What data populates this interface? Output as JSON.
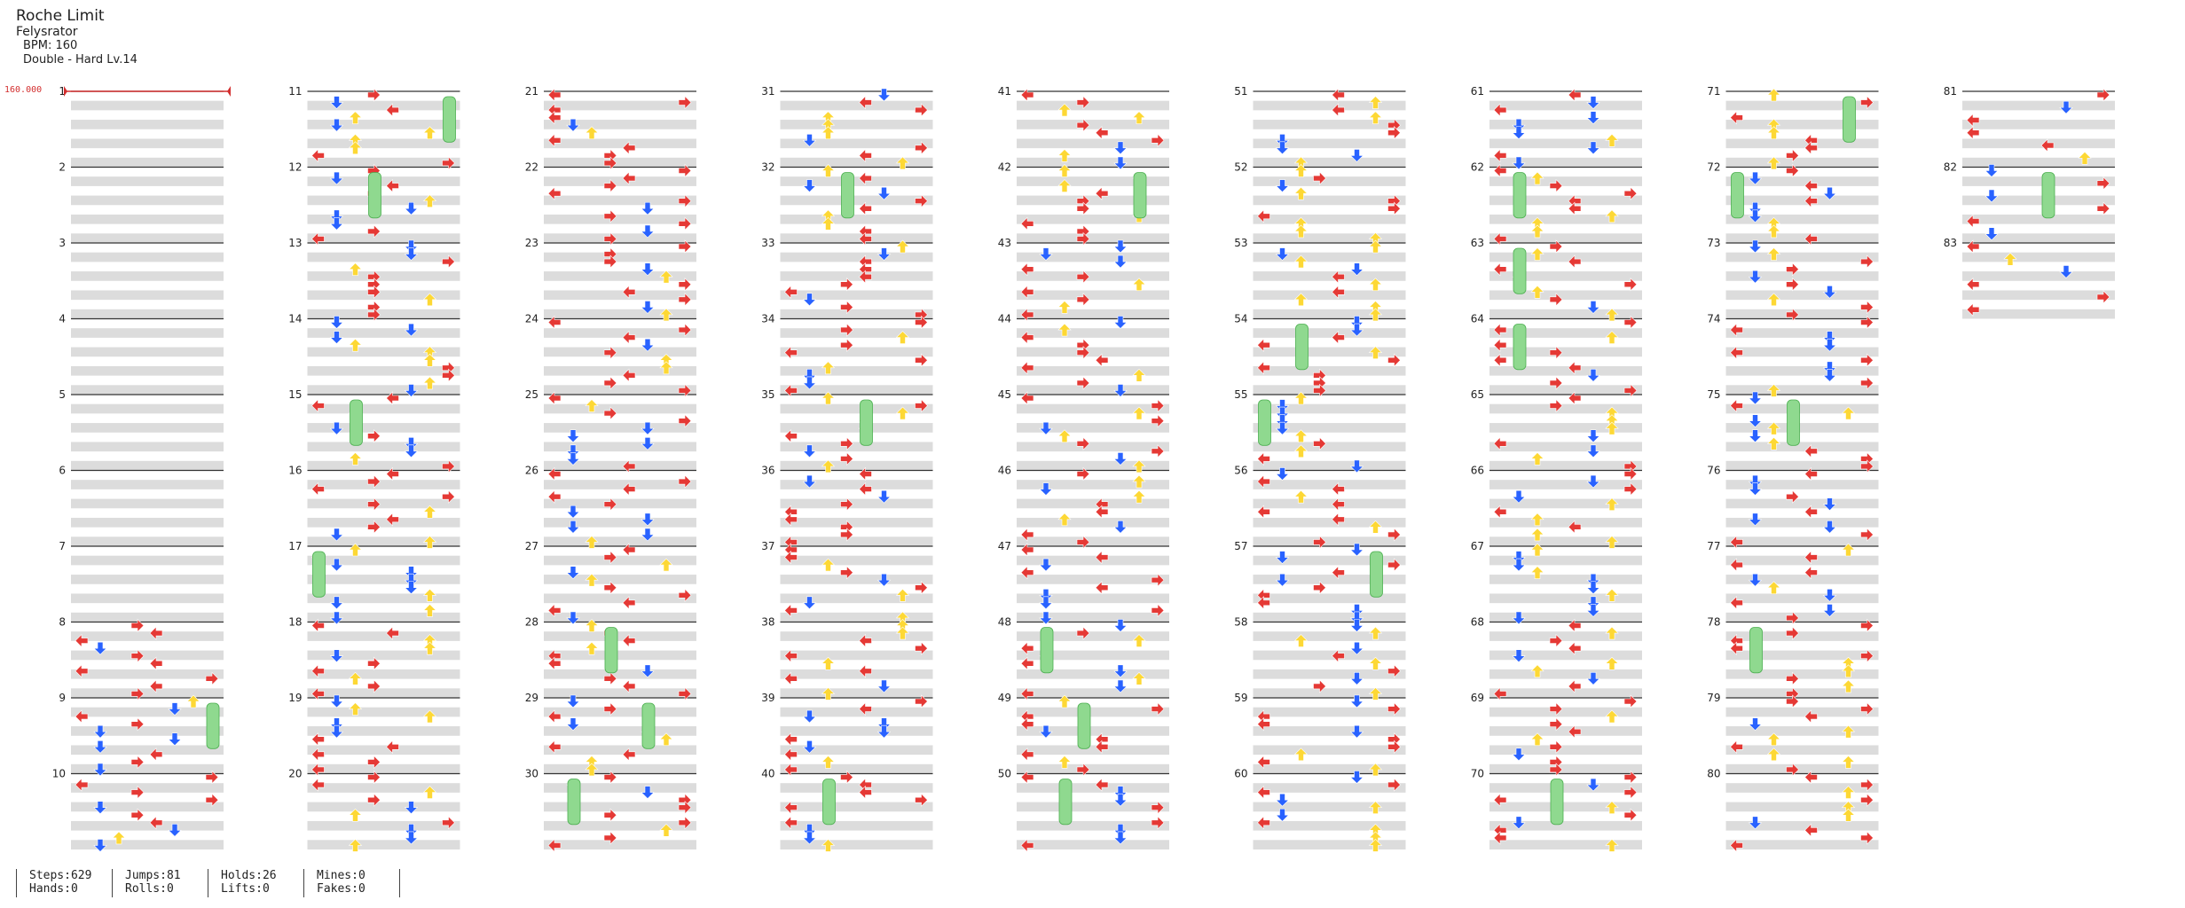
{
  "song": {
    "title": "Roche Limit",
    "artist": "Felysrator",
    "bpm_text": "BPM: 160",
    "difficulty_text": "Double - Hard Lv.14"
  },
  "bpm_marker": "160.000",
  "measure_labels": [
    "1",
    "2",
    "3",
    "4",
    "5",
    "6",
    "7",
    "8",
    "9",
    "10",
    "11",
    "12",
    "13",
    "14",
    "15",
    "16",
    "17",
    "18",
    "19",
    "20",
    "21",
    "22",
    "23",
    "24",
    "25",
    "26",
    "27",
    "28",
    "29",
    "30",
    "31",
    "32",
    "33",
    "34",
    "35",
    "36",
    "37",
    "38",
    "39",
    "40",
    "41",
    "42",
    "43",
    "44",
    "45",
    "46",
    "47",
    "48",
    "49",
    "50",
    "51",
    "52",
    "53",
    "54",
    "55",
    "56",
    "57",
    "58",
    "59",
    "60",
    "61",
    "62",
    "63",
    "64",
    "65",
    "66",
    "67",
    "68",
    "69",
    "70",
    "71",
    "72",
    "73",
    "74",
    "75",
    "76",
    "77",
    "78",
    "79",
    "80",
    "81",
    "82",
    "83"
  ],
  "stats": {
    "steps": "Steps:629",
    "hands": "Hands:0",
    "jumps": "Jumps:81",
    "rolls": "Rolls:0",
    "holds": "Holds:26",
    "lifts": "Lifts:0",
    "mines": "Mines:0",
    "fakes": "Fakes:0"
  },
  "colors": {
    "left": "#e53935",
    "down": "#2962ff",
    "up": "#fdd835",
    "right": "#e53935",
    "hold": "#8fd98f",
    "special": "#a23ee8",
    "band": "#dcdcdc"
  }
}
